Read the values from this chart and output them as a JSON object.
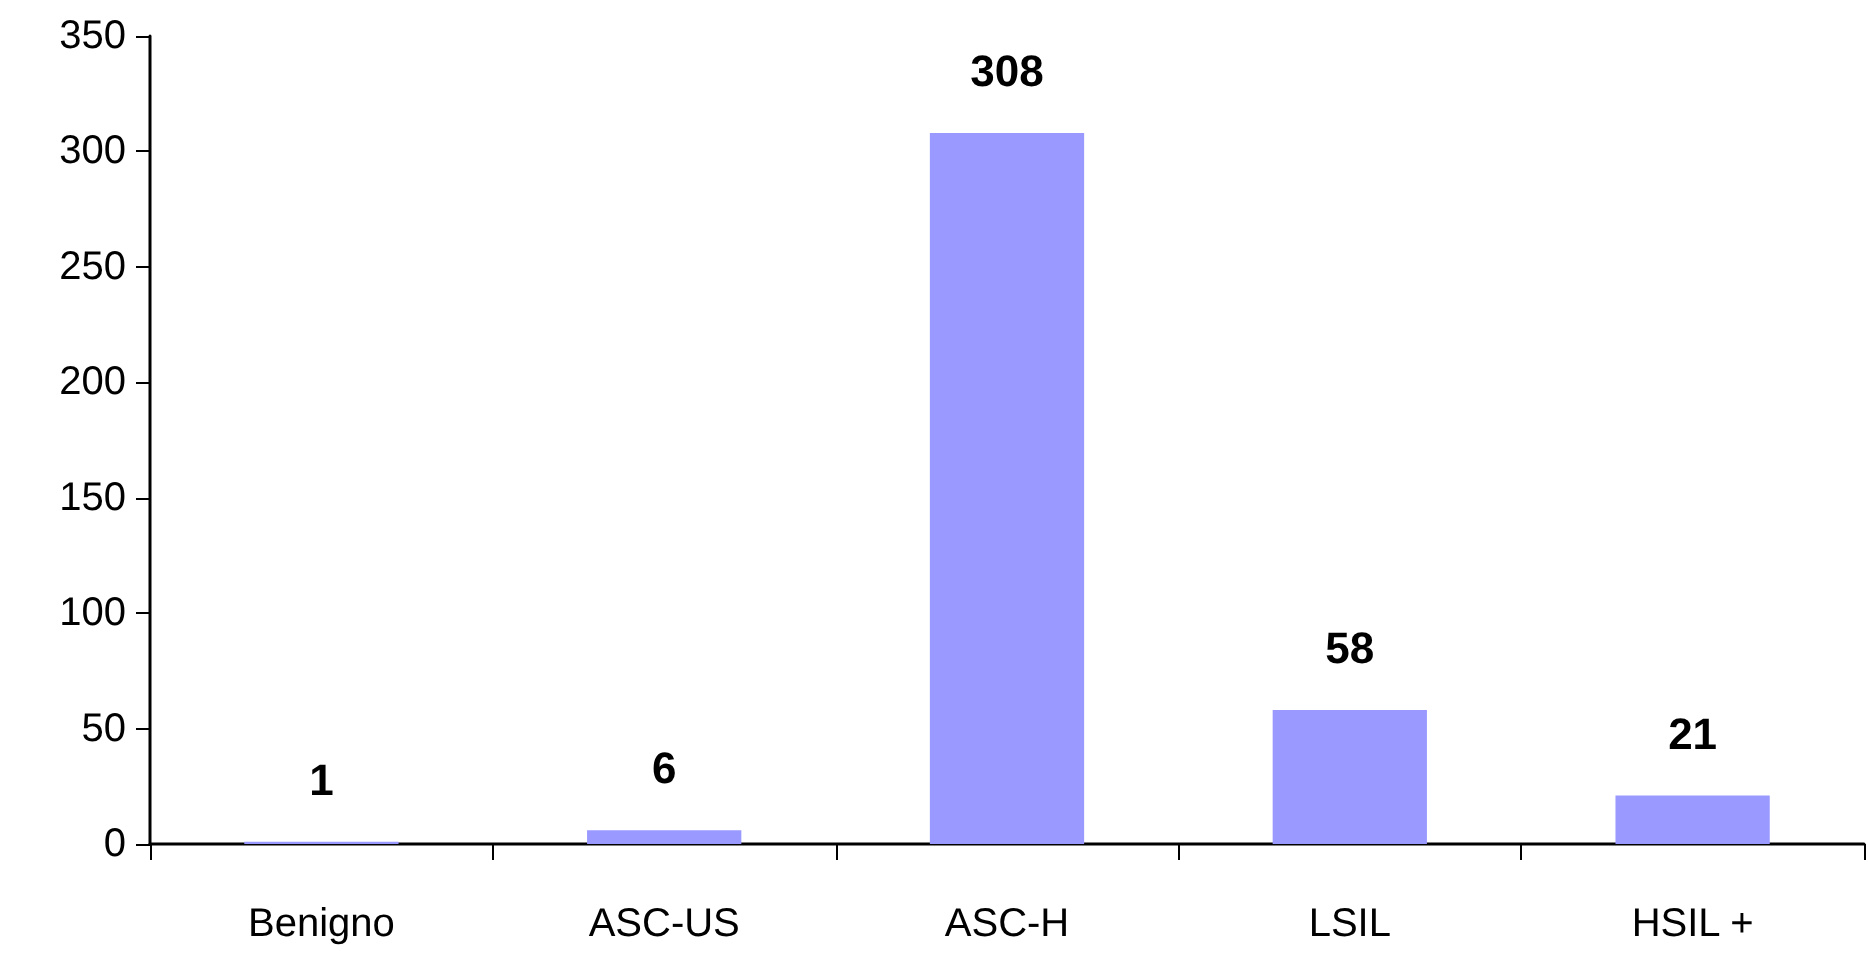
{
  "chart_data": {
    "type": "bar",
    "categories": [
      "Benigno",
      "ASC-US",
      "ASC-H",
      "LSIL",
      "HSIL +"
    ],
    "values": [
      1,
      6,
      308,
      58,
      21
    ],
    "color": "#9999ff",
    "ylim": [
      0,
      350
    ],
    "yticks": [
      0,
      50,
      100,
      150,
      200,
      250,
      300,
      350
    ],
    "data_labels": true,
    "grid": false
  }
}
